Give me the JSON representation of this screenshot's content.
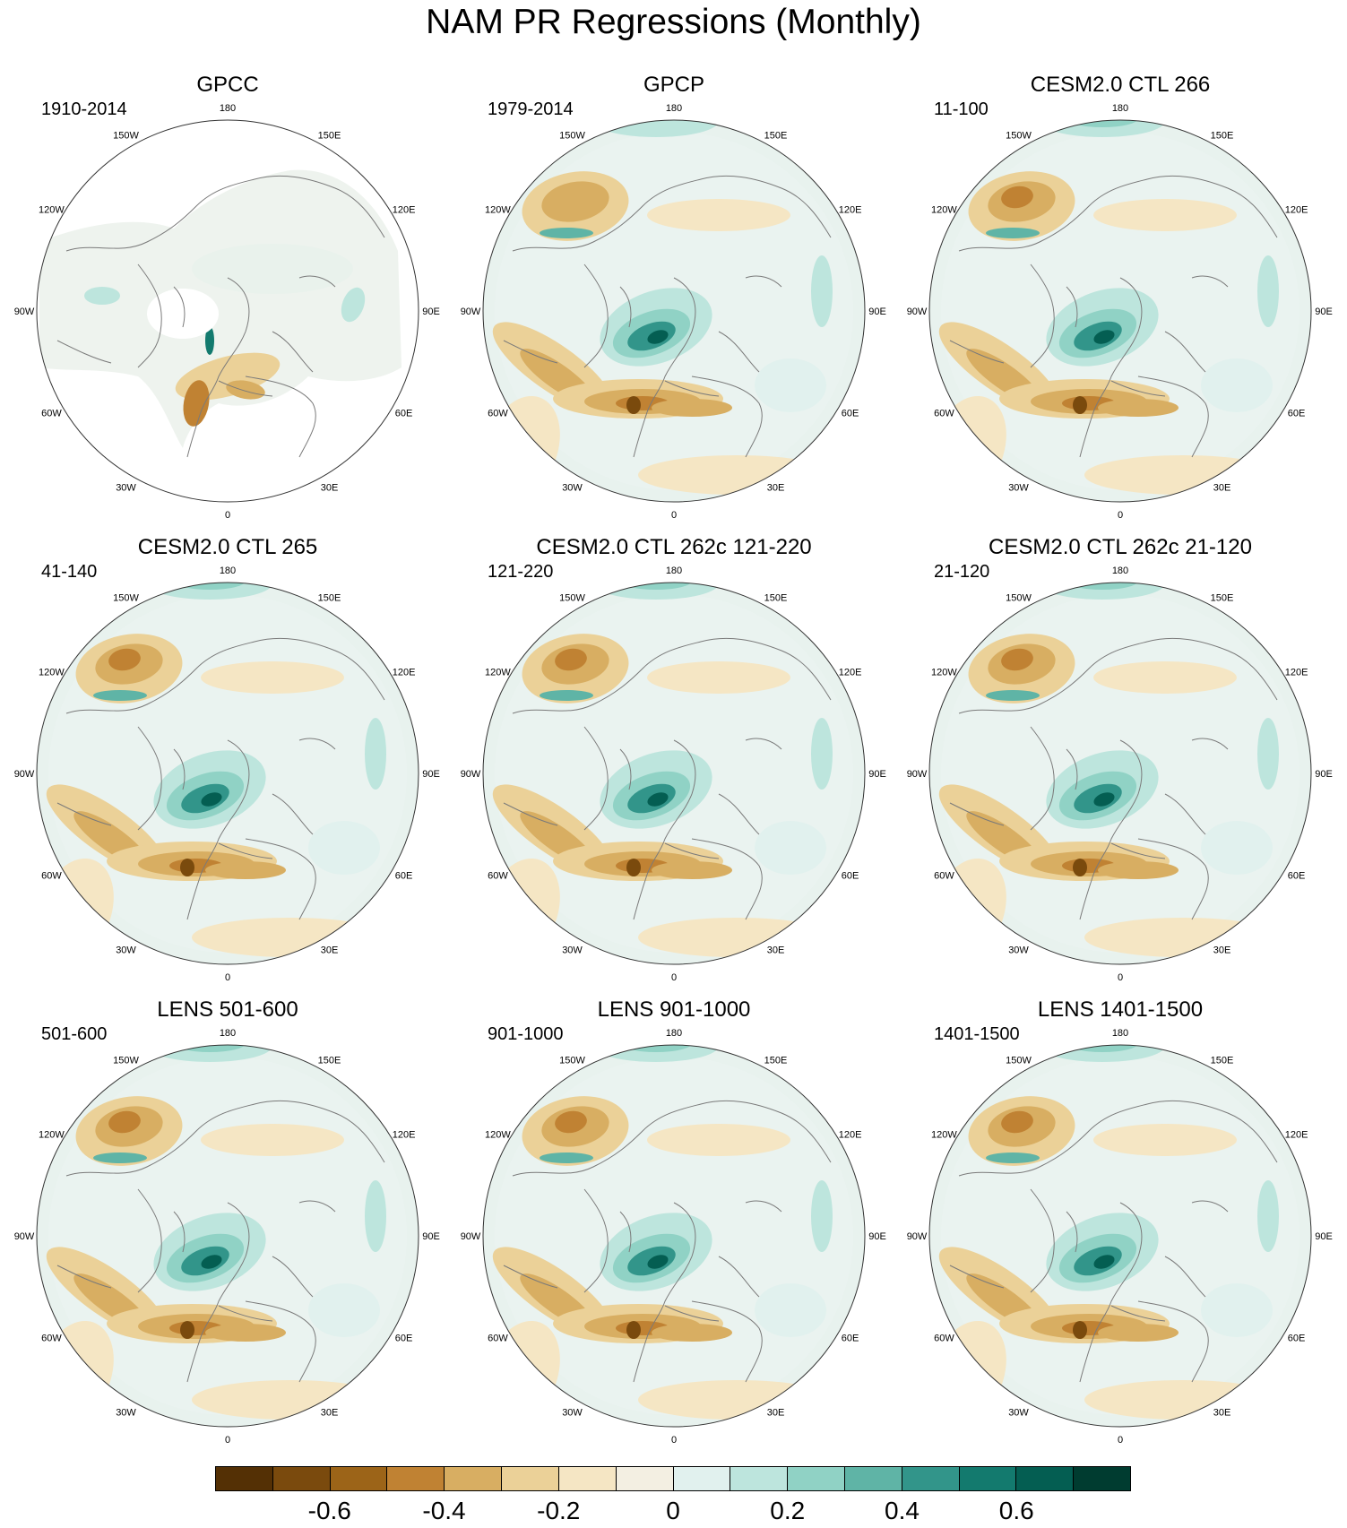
{
  "title": "NAM PR Regressions (Monthly)",
  "longitude_labels": [
    "180",
    "150E",
    "120E",
    "90E",
    "60E",
    "30E",
    "0",
    "30W",
    "60W",
    "90W",
    "120W",
    "150W"
  ],
  "panels": [
    {
      "title": "GPCC",
      "period": "1910-2014",
      "style": "obs-land"
    },
    {
      "title": "GPCP",
      "period": "1979-2014",
      "style": "obs"
    },
    {
      "title": "CESM2.0 CTL 266",
      "period": "11-100",
      "style": "model"
    },
    {
      "title": "CESM2.0 CTL 265",
      "period": "41-140",
      "style": "model"
    },
    {
      "title": "CESM2.0 CTL 262c 121-220",
      "period": "121-220",
      "style": "model"
    },
    {
      "title": "CESM2.0 CTL 262c 21-120",
      "period": "21-120",
      "style": "model"
    },
    {
      "title": "LENS 501-600",
      "period": "501-600",
      "style": "model"
    },
    {
      "title": "LENS 901-1000",
      "period": "901-1000",
      "style": "model"
    },
    {
      "title": "LENS 1401-1500",
      "period": "1401-1500",
      "style": "model"
    }
  ],
  "colorbar": {
    "colors": [
      "#543005",
      "#7a4a0d",
      "#9c6418",
      "#c08233",
      "#d8ae62",
      "#ebd198",
      "#f5e6c4",
      "#f3efe2",
      "#e1f1ee",
      "#bde5dd",
      "#90d2c5",
      "#5fb4a6",
      "#32958a",
      "#137a6e",
      "#045e52",
      "#003c30"
    ],
    "labels": [
      "-0.6",
      "-0.4",
      "-0.2",
      "0",
      "0.2",
      "0.4",
      "0.6"
    ],
    "label_values": [
      -0.6,
      -0.4,
      -0.2,
      0,
      0.2,
      0.4,
      0.6
    ],
    "min": -0.8,
    "max": 0.8
  }
}
